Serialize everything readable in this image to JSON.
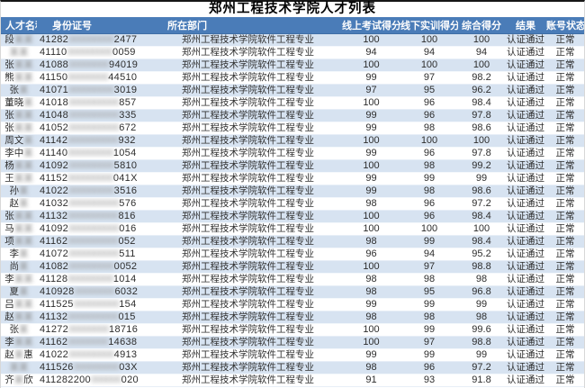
{
  "page": {
    "title": "郑州工程技术学院人才列表"
  },
  "colors": {
    "header_bg": "#4a7cb8",
    "header_text": "#ffffff",
    "stripe_bg": "#d7e3f1",
    "row_bg": "#ffffff",
    "body_text": "#2d2d2d",
    "top_border": "#161616"
  },
  "table": {
    "columns": [
      {
        "key": "name",
        "label": "人才名称"
      },
      {
        "key": "id",
        "label": "身份证号"
      },
      {
        "key": "dept",
        "label": "所在部门"
      },
      {
        "key": "online",
        "label": "线上考试得分"
      },
      {
        "key": "offline",
        "label": "线下实训得分"
      },
      {
        "key": "total",
        "label": "综合得分"
      },
      {
        "key": "result",
        "label": "结果"
      },
      {
        "key": "status",
        "label": "账号状态"
      }
    ],
    "rows": [
      {
        "name_prefix": "段",
        "name_redacted": "某某",
        "name_suffix": "",
        "id_prefix": "41282",
        "id_redacted": "000000000",
        "id_suffix": "2477",
        "dept": "郑州工程技术学院软件工程专业",
        "online": "100",
        "offline": "100",
        "total": "100",
        "result": "认证通过",
        "status": "正常"
      },
      {
        "name_prefix": "",
        "name_redacted": "某某",
        "name_suffix": "",
        "id_prefix": "41110",
        "id_redacted": "000000000",
        "id_suffix": "0059",
        "dept": "郑州工程技术学院软件工程专业",
        "online": "94",
        "offline": "94",
        "total": "94",
        "result": "认证通过",
        "status": "正常"
      },
      {
        "name_prefix": "张",
        "name_redacted": "某某",
        "name_suffix": "",
        "id_prefix": "41088",
        "id_redacted": "00000000",
        "id_suffix": "94019",
        "dept": "郑州工程技术学院软件工程专业",
        "online": "100",
        "offline": "100",
        "total": "100",
        "result": "认证通过",
        "status": "正常"
      },
      {
        "name_prefix": "熊",
        "name_redacted": "某某",
        "name_suffix": "",
        "id_prefix": "41150",
        "id_redacted": "00000000",
        "id_suffix": "44510",
        "dept": "郑州工程技术学院软件工程专业",
        "online": "99",
        "offline": "97",
        "total": "98.2",
        "result": "认证通过",
        "status": "正常"
      },
      {
        "name_prefix": "张",
        "name_redacted": "某",
        "name_suffix": "",
        "id_prefix": "41071",
        "id_redacted": "000000000",
        "id_suffix": "3019",
        "dept": "郑州工程技术学院软件工程专业",
        "online": "97",
        "offline": "95",
        "total": "96.2",
        "result": "认证通过",
        "status": "正常"
      },
      {
        "name_prefix": "董晓",
        "name_redacted": "某",
        "name_suffix": "",
        "id_prefix": "41018",
        "id_redacted": "0000000000",
        "id_suffix": "857",
        "dept": "郑州工程技术学院软件工程专业",
        "online": "100",
        "offline": "96",
        "total": "98.4",
        "result": "认证通过",
        "status": "正常"
      },
      {
        "name_prefix": "张",
        "name_redacted": "某某",
        "name_suffix": "",
        "id_prefix": "41048",
        "id_redacted": "0000000000",
        "id_suffix": "335",
        "dept": "郑州工程技术学院软件工程专业",
        "online": "99",
        "offline": "96",
        "total": "97.8",
        "result": "认证通过",
        "status": "正常"
      },
      {
        "name_prefix": "张",
        "name_redacted": "某某",
        "name_suffix": "",
        "id_prefix": "41052",
        "id_redacted": "0000000000",
        "id_suffix": "672",
        "dept": "郑州工程技术学院软件工程专业",
        "online": "99",
        "offline": "98",
        "total": "98.6",
        "result": "认证通过",
        "status": "正常"
      },
      {
        "name_prefix": "周文",
        "name_redacted": "某",
        "name_suffix": "",
        "id_prefix": "41142",
        "id_redacted": "0000000000",
        "id_suffix": "932",
        "dept": "郑州工程技术学院软件工程专业",
        "online": "100",
        "offline": "100",
        "total": "100",
        "result": "认证通过",
        "status": "正常"
      },
      {
        "name_prefix": "李中",
        "name_redacted": "某",
        "name_suffix": "",
        "id_prefix": "41140",
        "id_redacted": "000000000",
        "id_suffix": "1054",
        "dept": "郑州工程技术学院软件工程专业",
        "online": "99",
        "offline": "96",
        "total": "97.8",
        "result": "认证通过",
        "status": "正常"
      },
      {
        "name_prefix": "杨",
        "name_redacted": "某某",
        "name_suffix": "",
        "id_prefix": "41092",
        "id_redacted": "000000000",
        "id_suffix": "5810",
        "dept": "郑州工程技术学院软件工程专业",
        "online": "100",
        "offline": "98",
        "total": "99.2",
        "result": "认证通过",
        "status": "正常"
      },
      {
        "name_prefix": "王",
        "name_redacted": "某某",
        "name_suffix": "",
        "id_prefix": "41152",
        "id_redacted": "000000000",
        "id_suffix": "041X",
        "dept": "郑州工程技术学院软件工程专业",
        "online": "99",
        "offline": "99",
        "total": "99",
        "result": "认证通过",
        "status": "正常"
      },
      {
        "name_prefix": "孙",
        "name_redacted": "某",
        "name_suffix": "",
        "id_prefix": "41022",
        "id_redacted": "000000000",
        "id_suffix": "3516",
        "dept": "郑州工程技术学院软件工程专业",
        "online": "99",
        "offline": "98",
        "total": "98.6",
        "result": "认证通过",
        "status": "正常"
      },
      {
        "name_prefix": "赵",
        "name_redacted": "某",
        "name_suffix": "",
        "id_prefix": "41032",
        "id_redacted": "0000000000",
        "id_suffix": "576",
        "dept": "郑州工程技术学院软件工程专业",
        "online": "98",
        "offline": "96",
        "total": "97.2",
        "result": "认证通过",
        "status": "正常"
      },
      {
        "name_prefix": "张",
        "name_redacted": "某某",
        "name_suffix": "",
        "id_prefix": "41132",
        "id_redacted": "0000000000",
        "id_suffix": "816",
        "dept": "郑州工程技术学院软件工程专业",
        "online": "100",
        "offline": "96",
        "total": "98.4",
        "result": "认证通过",
        "status": "正常"
      },
      {
        "name_prefix": "马",
        "name_redacted": "某某",
        "name_suffix": "",
        "id_prefix": "41092",
        "id_redacted": "0000000000",
        "id_suffix": "016",
        "dept": "郑州工程技术学院软件工程专业",
        "online": "100",
        "offline": "100",
        "total": "100",
        "result": "认证通过",
        "status": "正常"
      },
      {
        "name_prefix": "项",
        "name_redacted": "某某",
        "name_suffix": "",
        "id_prefix": "41162",
        "id_redacted": "0000000000",
        "id_suffix": "052",
        "dept": "郑州工程技术学院软件工程专业",
        "online": "98",
        "offline": "99",
        "total": "98.4",
        "result": "认证通过",
        "status": "正常"
      },
      {
        "name_prefix": "李",
        "name_redacted": "某",
        "name_suffix": "",
        "id_prefix": "41072",
        "id_redacted": "0000000000",
        "id_suffix": "511",
        "dept": "郑州工程技术学院软件工程专业",
        "online": "96",
        "offline": "94",
        "total": "95.2",
        "result": "认证通过",
        "status": "正常"
      },
      {
        "name_prefix": "尚",
        "name_redacted": "某",
        "name_suffix": "",
        "id_prefix": "41082",
        "id_redacted": "000000000",
        "id_suffix": "0052",
        "dept": "郑州工程技术学院软件工程专业",
        "online": "100",
        "offline": "97",
        "total": "98.8",
        "result": "认证通过",
        "status": "正常"
      },
      {
        "name_prefix": "李",
        "name_redacted": "某某",
        "name_suffix": "",
        "id_prefix": "41128",
        "id_redacted": "000000000",
        "id_suffix": "1014",
        "dept": "郑州工程技术学院软件工程专业",
        "online": "98",
        "offline": "98",
        "total": "98",
        "result": "认证通过",
        "status": "正常"
      },
      {
        "name_prefix": "夏",
        "name_redacted": "某",
        "name_suffix": "",
        "id_prefix": "410928",
        "id_redacted": "00000000",
        "id_suffix": "6032",
        "dept": "郑州工程技术学院软件工程专业",
        "online": "98",
        "offline": "95",
        "total": "96.8",
        "result": "认证通过",
        "status": "正常"
      },
      {
        "name_prefix": "吕",
        "name_redacted": "某某",
        "name_suffix": "",
        "id_prefix": "411525",
        "id_redacted": "000000000",
        "id_suffix": "154",
        "dept": "郑州工程技术学院软件工程专业",
        "online": "99",
        "offline": "99",
        "total": "99",
        "result": "认证通过",
        "status": "正常"
      },
      {
        "name_prefix": "赵",
        "name_redacted": "某某",
        "name_suffix": "",
        "id_prefix": "41132",
        "id_redacted": "0000000000",
        "id_suffix": "015",
        "dept": "郑州工程技术学院软件工程专业",
        "online": "98",
        "offline": "98",
        "total": "98",
        "result": "认证通过",
        "status": "正常"
      },
      {
        "name_prefix": "张",
        "name_redacted": "某",
        "name_suffix": "",
        "id_prefix": "41272",
        "id_redacted": "00000000",
        "id_suffix": "18716",
        "dept": "郑州工程技术学院软件工程专业",
        "online": "100",
        "offline": "99",
        "total": "99.6",
        "result": "认证通过",
        "status": "正常"
      },
      {
        "name_prefix": "李",
        "name_redacted": "某某",
        "name_suffix": "",
        "id_prefix": "41162",
        "id_redacted": "00000000",
        "id_suffix": "14638",
        "dept": "郑州工程技术学院软件工程专业",
        "online": "100",
        "offline": "97",
        "total": "98.8",
        "result": "认证通过",
        "status": "正常"
      },
      {
        "name_prefix": "赵",
        "name_redacted": "某",
        "name_suffix": "惠",
        "id_prefix": "41022",
        "id_redacted": "000000000",
        "id_suffix": "4913",
        "dept": "郑州工程技术学院软件工程专业",
        "online": "99",
        "offline": "99",
        "total": "99",
        "result": "认证通过",
        "status": "正常"
      },
      {
        "name_prefix": "",
        "name_redacted": "某某",
        "name_suffix": "",
        "id_prefix": "411526",
        "id_redacted": "000000000",
        "id_suffix": "03X",
        "dept": "郑州工程技术学院软件工程专业",
        "online": "98",
        "offline": "96",
        "total": "97.2",
        "result": "认证通过",
        "status": "正常"
      },
      {
        "name_prefix": "齐",
        "name_redacted": "某",
        "name_suffix": "欣",
        "id_prefix": "411282200",
        "id_redacted": "000000",
        "id_suffix": "020",
        "dept": "郑州工程技术学院软件工程专业",
        "online": "91",
        "offline": "93",
        "total": "91.8",
        "result": "认证通过",
        "status": "正常"
      }
    ]
  }
}
